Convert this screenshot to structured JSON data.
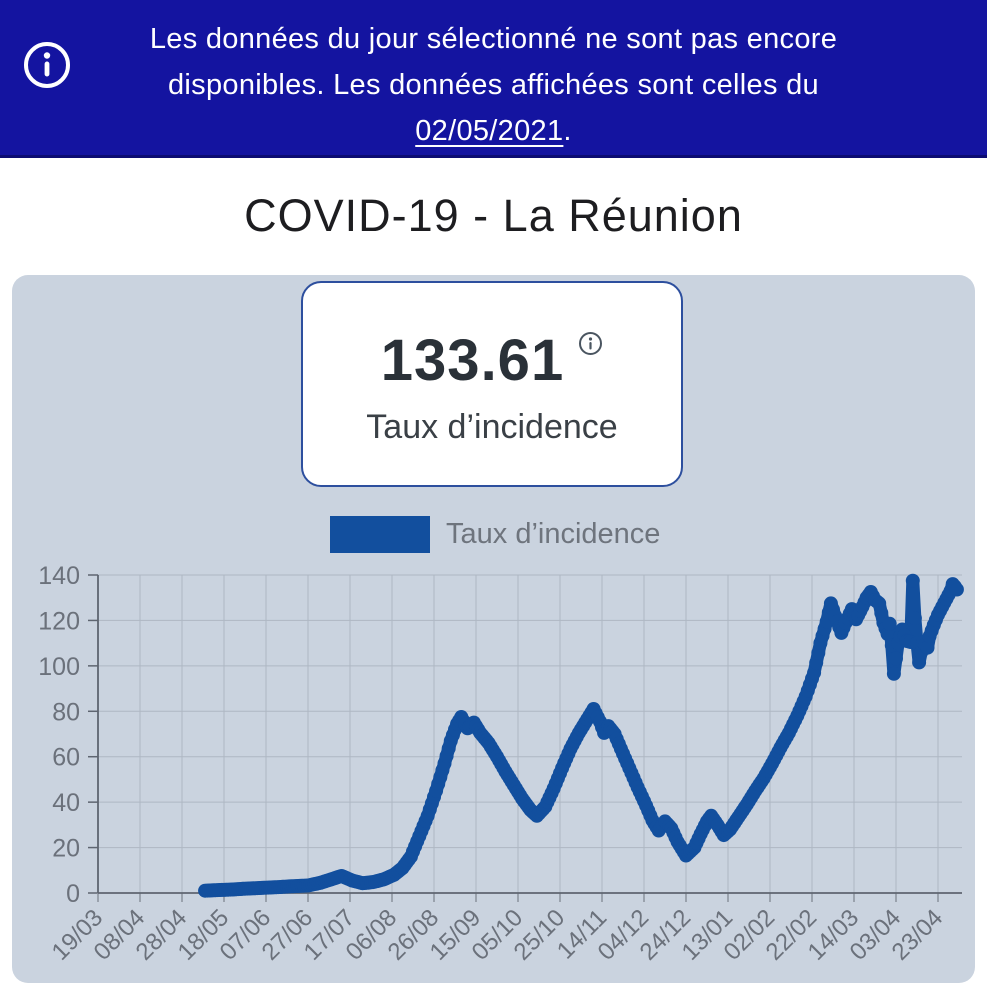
{
  "banner": {
    "message": "Les données du jour sélectionné ne sont pas encore disponibles. Les données affichées sont celles du",
    "date": "02/05/2021",
    "period": ".",
    "icon": "info-circle-icon",
    "background": "#1414a0"
  },
  "title": "COVID-19 - La Réunion",
  "card": {
    "value": "133.61",
    "label": "Taux d’incidence",
    "info_icon": "info-circle-icon",
    "border_color": "#2d4f9e"
  },
  "chart_data": {
    "type": "line",
    "markers": true,
    "title": "",
    "xlabel": "",
    "ylabel": "",
    "legend": [
      "Taux d’incidence"
    ],
    "legend_position": "top",
    "grid": true,
    "ylim": [
      0,
      140
    ],
    "y_ticks": [
      0,
      20,
      40,
      60,
      80,
      100,
      120,
      140
    ],
    "x_base_date": "19/03/2020",
    "x_tick_interval_days": 20,
    "x_tick_labels": [
      "19/03",
      "08/04",
      "28/04",
      "18/05",
      "07/06",
      "27/06",
      "17/07",
      "06/08",
      "26/08",
      "15/09",
      "05/10",
      "25/10",
      "14/11",
      "04/12",
      "24/12",
      "13/01",
      "02/02",
      "22/02",
      "14/03",
      "03/04",
      "23/04"
    ],
    "colors": {
      "series": "#124f9e",
      "grid": "#aeb7c3",
      "axis": "#5e6570",
      "tick_text": "#6b717b"
    },
    "series": [
      {
        "name": "Taux d’incidence",
        "note": "daily curve; values estimated from gridlines at anchor dates, daily points linearly interpolated",
        "points": [
          [
            "09/05/2020",
            1
          ],
          [
            "16/05/2020",
            1.3
          ],
          [
            "23/05/2020",
            1.6
          ],
          [
            "30/05/2020",
            2
          ],
          [
            "06/06/2020",
            2.3
          ],
          [
            "13/06/2020",
            2.6
          ],
          [
            "20/06/2020",
            3
          ],
          [
            "27/06/2020",
            3.3
          ],
          [
            "03/07/2020",
            4.5
          ],
          [
            "08/07/2020",
            6
          ],
          [
            "13/07/2020",
            7.5
          ],
          [
            "18/07/2020",
            5.5
          ],
          [
            "23/07/2020",
            4.3
          ],
          [
            "28/07/2020",
            4.8
          ],
          [
            "02/08/2020",
            6
          ],
          [
            "07/08/2020",
            8
          ],
          [
            "11/08/2020",
            11
          ],
          [
            "15/08/2020",
            16
          ],
          [
            "19/08/2020",
            25
          ],
          [
            "23/08/2020",
            34
          ],
          [
            "27/08/2020",
            45
          ],
          [
            "31/08/2020",
            57
          ],
          [
            "03/09/2020",
            67
          ],
          [
            "06/09/2020",
            74.5
          ],
          [
            "08/09/2020",
            77.5
          ],
          [
            "11/09/2020",
            72.5
          ],
          [
            "14/09/2020",
            75
          ],
          [
            "17/09/2020",
            70.5
          ],
          [
            "21/09/2020",
            66
          ],
          [
            "25/09/2020",
            60
          ],
          [
            "29/09/2020",
            53.5
          ],
          [
            "03/10/2020",
            47.5
          ],
          [
            "07/10/2020",
            41.5
          ],
          [
            "11/10/2020",
            36.5
          ],
          [
            "14/10/2020",
            34
          ],
          [
            "18/10/2020",
            38
          ],
          [
            "22/10/2020",
            46
          ],
          [
            "26/10/2020",
            55
          ],
          [
            "30/10/2020",
            63.5
          ],
          [
            "03/11/2020",
            70.5
          ],
          [
            "07/11/2020",
            76.5
          ],
          [
            "10/11/2020",
            81
          ],
          [
            "13/11/2020",
            75.5
          ],
          [
            "15/11/2020",
            70.5
          ],
          [
            "17/11/2020",
            73.5
          ],
          [
            "20/11/2020",
            70
          ],
          [
            "23/11/2020",
            63.5
          ],
          [
            "27/11/2020",
            55
          ],
          [
            "01/12/2020",
            46.5
          ],
          [
            "05/12/2020",
            38.5
          ],
          [
            "08/12/2020",
            32
          ],
          [
            "11/12/2020",
            27.5
          ],
          [
            "14/12/2020",
            31.5
          ],
          [
            "17/12/2020",
            28.5
          ],
          [
            "20/12/2020",
            22.5
          ],
          [
            "24/12/2020",
            16.5
          ],
          [
            "28/12/2020",
            20
          ],
          [
            "31/12/2020",
            26
          ],
          [
            "03/01/2021",
            31.5
          ],
          [
            "05/01/2021",
            34
          ],
          [
            "08/01/2021",
            30
          ],
          [
            "11/01/2021",
            25.5
          ],
          [
            "14/01/2021",
            28
          ],
          [
            "18/01/2021",
            33.5
          ],
          [
            "22/01/2021",
            39
          ],
          [
            "26/01/2021",
            45
          ],
          [
            "30/01/2021",
            50.5
          ],
          [
            "03/02/2021",
            57
          ],
          [
            "07/02/2021",
            64
          ],
          [
            "11/02/2021",
            70.5
          ],
          [
            "15/02/2021",
            78
          ],
          [
            "19/02/2021",
            86.5
          ],
          [
            "23/02/2021",
            97
          ],
          [
            "26/02/2021",
            110
          ],
          [
            "01/03/2021",
            119.5
          ],
          [
            "03/03/2021",
            127.5
          ],
          [
            "05/03/2021",
            122
          ],
          [
            "08/03/2021",
            114.5
          ],
          [
            "10/03/2021",
            119
          ],
          [
            "13/03/2021",
            125
          ],
          [
            "15/03/2021",
            120.5
          ],
          [
            "18/03/2021",
            126
          ],
          [
            "20/03/2021",
            130
          ],
          [
            "22/03/2021",
            132.5
          ],
          [
            "24/03/2021",
            129
          ],
          [
            "26/03/2021",
            127.5
          ],
          [
            "28/03/2021",
            119
          ],
          [
            "30/03/2021",
            114
          ],
          [
            "31/03/2021",
            118.5
          ],
          [
            "01/04/2021",
            109
          ],
          [
            "02/04/2021",
            96.5
          ],
          [
            "04/04/2021",
            110
          ],
          [
            "06/04/2021",
            116
          ],
          [
            "08/04/2021",
            111
          ],
          [
            "10/04/2021",
            110.5
          ],
          [
            "11/04/2021",
            137.5
          ],
          [
            "12/04/2021",
            121
          ],
          [
            "13/04/2021",
            110
          ],
          [
            "14/04/2021",
            101.5
          ],
          [
            "16/04/2021",
            110.5
          ],
          [
            "18/04/2021",
            108
          ],
          [
            "19/04/2021",
            113
          ],
          [
            "21/04/2021",
            118
          ],
          [
            "23/04/2021",
            122.5
          ],
          [
            "25/04/2021",
            126
          ],
          [
            "27/04/2021",
            129.5
          ],
          [
            "29/04/2021",
            133
          ],
          [
            "30/04/2021",
            136
          ],
          [
            "01/05/2021",
            135
          ],
          [
            "02/05/2021",
            133.61
          ]
        ]
      }
    ]
  }
}
